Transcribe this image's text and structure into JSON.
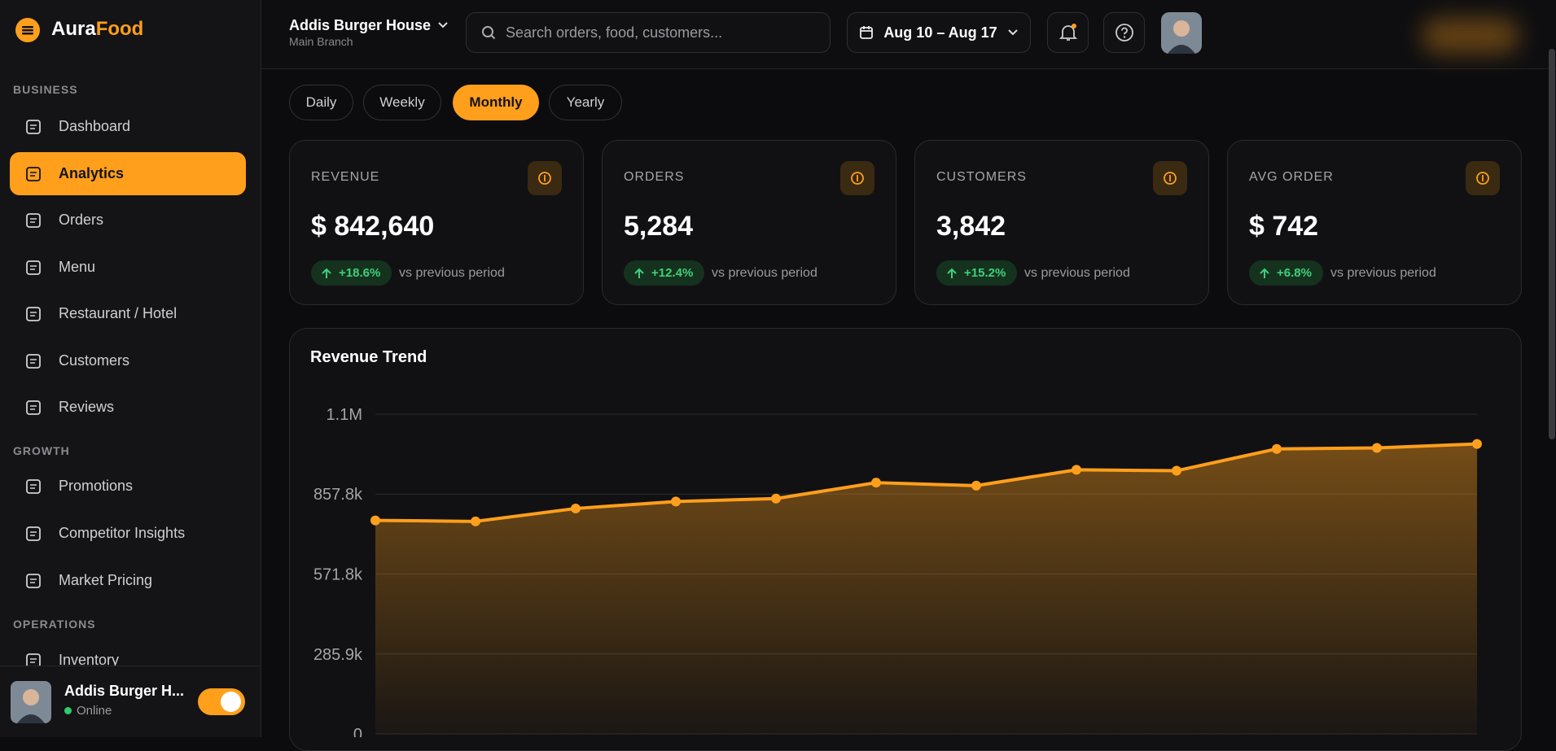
{
  "brand": {
    "primary": "Aura",
    "accent": "Food"
  },
  "sidebar": {
    "sections": [
      {
        "title": "BUSINESS",
        "items": [
          "Dashboard",
          "Analytics",
          "Orders",
          "Menu",
          "Restaurant / Hotel",
          "Customers",
          "Reviews"
        ]
      },
      {
        "title": "GROWTH",
        "items": [
          "Promotions",
          "Competitor Insights",
          "Market Pricing"
        ]
      },
      {
        "title": "OPERATIONS",
        "items": [
          "Inventory"
        ]
      }
    ],
    "active": "Analytics",
    "footer": {
      "name": "Addis Burger H...",
      "status": "Online"
    }
  },
  "header": {
    "restaurant": "Addis Burger House",
    "branch": "Main Branch",
    "search_placeholder": "Search orders, food, customers...",
    "date_range": "Aug 10 – Aug 17"
  },
  "tabs": {
    "items": [
      "Daily",
      "Weekly",
      "Monthly",
      "Yearly"
    ],
    "active": "Monthly"
  },
  "kpis": [
    {
      "label": "REVENUE",
      "value": "$ 842,640",
      "change": "+18.6%",
      "note": "vs previous period"
    },
    {
      "label": "ORDERS",
      "value": "5,284",
      "change": "+12.4%",
      "note": "vs previous period"
    },
    {
      "label": "CUSTOMERS",
      "value": "3,842",
      "change": "+15.2%",
      "note": "vs previous period"
    },
    {
      "label": "AVG ORDER",
      "value": "$ 742",
      "change": "+6.8%",
      "note": "vs previous period"
    }
  ],
  "chart_data": {
    "type": "area",
    "title": "Revenue Trend",
    "categories": [
      null,
      null,
      null,
      null,
      null,
      null,
      null,
      null,
      null,
      null,
      null,
      null
    ],
    "values": [
      763700,
      760100,
      806300,
      831200,
      841800,
      898700,
      888000,
      944800,
      941300,
      1019400,
      1023000,
      1037200
    ],
    "color": "#ff9f1c",
    "ylim": [
      0,
      1143700
    ],
    "yticks": [
      0,
      {
        "value": 285900,
        "label": "285.9k"
      },
      {
        "value": 571800,
        "label": "571.8k"
      },
      {
        "value": 857800,
        "label": "857.8k"
      },
      {
        "value": 1143700,
        "label": "1.1M"
      }
    ],
    "grid": true
  }
}
